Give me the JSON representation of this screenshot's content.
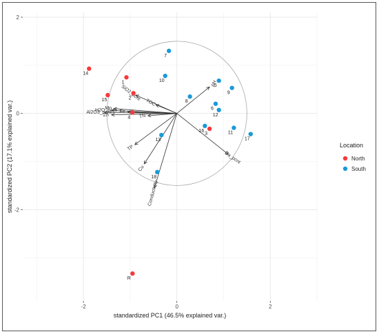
{
  "chart_data": {
    "type": "scatter",
    "title": "",
    "xlabel": "standardized PC1 (46.5% explained var.)",
    "ylabel": "standardized PC2 (17.1% explained var.)",
    "xlim": [
      -3.3,
      3.0
    ],
    "ylim": [
      -3.9,
      2.1
    ],
    "xticks": [
      -2,
      0,
      2
    ],
    "yticks": [
      -2,
      0,
      2
    ],
    "grid": true,
    "legend_position": "right",
    "legend": {
      "title": "Location",
      "items": [
        {
          "name": "North",
          "color": "#f8393b"
        },
        {
          "name": "South",
          "color": "#1a9ad6"
        }
      ]
    },
    "correlation_circle": {
      "center": [
        0,
        0
      ],
      "radius": 1.5
    },
    "points": [
      {
        "label": "14",
        "x": -1.88,
        "y": 0.93,
        "group": "North"
      },
      {
        "label": "15",
        "x": -1.48,
        "y": 0.38,
        "group": "North"
      },
      {
        "label": "1",
        "x": -1.08,
        "y": 0.75,
        "group": "North"
      },
      {
        "label": "2",
        "x": -0.93,
        "y": 0.42,
        "group": "North"
      },
      {
        "label": "4",
        "x": -0.95,
        "y": 0.02,
        "group": "North"
      },
      {
        "label": "3",
        "x": 0.7,
        "y": -0.32,
        "group": "North"
      },
      {
        "label": "R",
        "x": -0.95,
        "y": -3.33,
        "group": "North"
      },
      {
        "label": "7",
        "x": -0.17,
        "y": 1.3,
        "group": "South"
      },
      {
        "label": "10",
        "x": -0.25,
        "y": 0.78,
        "group": "South"
      },
      {
        "label": "8",
        "x": 0.28,
        "y": 0.35,
        "group": "South"
      },
      {
        "label": "5",
        "x": 0.9,
        "y": 0.68,
        "group": "South"
      },
      {
        "label": "9",
        "x": 1.18,
        "y": 0.53,
        "group": "South"
      },
      {
        "label": "6",
        "x": 0.83,
        "y": 0.2,
        "group": "South"
      },
      {
        "label": "12",
        "x": 0.9,
        "y": 0.07,
        "group": "South"
      },
      {
        "label": "16",
        "x": 0.6,
        "y": -0.26,
        "group": "South"
      },
      {
        "label": "11",
        "x": 1.22,
        "y": -0.3,
        "group": "South"
      },
      {
        "label": "17",
        "x": 1.58,
        "y": -0.43,
        "group": "South"
      },
      {
        "label": "13",
        "x": -0.33,
        "y": -0.45,
        "group": "South"
      },
      {
        "label": "18",
        "x": -0.42,
        "y": -1.22,
        "group": "South"
      }
    ],
    "loadings": [
      {
        "label": "SiO2_pcnt",
        "x": -0.88,
        "y": 0.38,
        "angle": 38
      },
      {
        "label": "pH",
        "x": 0.7,
        "y": 0.55,
        "angle": -60
      },
      {
        "label": "TOC",
        "x": -0.45,
        "y": 0.18,
        "angle": 28
      },
      {
        "label": "Mn",
        "x": -1.35,
        "y": 0.1,
        "angle": 0
      },
      {
        "label": "H2O_pcnt",
        "x": -1.4,
        "y": 0.06,
        "angle": 0
      },
      {
        "label": "Fe",
        "x": -1.05,
        "y": 0.03,
        "angle": 0
      },
      {
        "label": "Al2O3_pcnt",
        "x": -1.55,
        "y": 0.02,
        "angle": 0
      },
      {
        "label": "Zn",
        "x": -1.4,
        "y": -0.03,
        "angle": 0
      },
      {
        "label": "TN",
        "x": -0.62,
        "y": -0.05,
        "angle": -12
      },
      {
        "label": "TP",
        "x": -0.9,
        "y": -0.65,
        "angle": -35
      },
      {
        "label": "Cu",
        "x": -0.7,
        "y": -1.05,
        "angle": -55
      },
      {
        "label": "Conductivity",
        "x": -0.48,
        "y": -1.55,
        "angle": -75
      },
      {
        "label": "Ca_pcnt",
        "x": 1.1,
        "y": -0.85,
        "angle": 35
      }
    ]
  }
}
